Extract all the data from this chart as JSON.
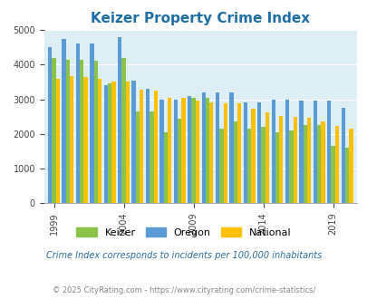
{
  "title": "Keizer Property Crime Index",
  "years": [
    1999,
    2000,
    2001,
    2002,
    2003,
    2004,
    2005,
    2006,
    2007,
    2008,
    2009,
    2010,
    2011,
    2012,
    2013,
    2014,
    2015,
    2016,
    2017,
    2018,
    2019,
    2020
  ],
  "keizer": [
    4200,
    4150,
    4130,
    4100,
    3450,
    4200,
    2650,
    2650,
    2050,
    2450,
    3050,
    3050,
    2150,
    2350,
    2150,
    2200,
    2050,
    2100,
    2250,
    2250,
    1650,
    1600
  ],
  "oregon": [
    4500,
    4750,
    4600,
    4600,
    3400,
    4800,
    3550,
    3300,
    3000,
    3000,
    3100,
    3200,
    3200,
    3200,
    2900,
    2900,
    3000,
    3000,
    2950,
    2950,
    2950,
    2750
  ],
  "national": [
    3600,
    3680,
    3650,
    3600,
    3520,
    3500,
    3280,
    3250,
    3050,
    3050,
    2960,
    2920,
    2880,
    2880,
    2720,
    2620,
    2520,
    2500,
    2470,
    2370,
    2240,
    2150
  ],
  "keizer_color": "#8bc34a",
  "oregon_color": "#5b9bd5",
  "national_color": "#ffc000",
  "bg_color": "#ddeef4",
  "ylim": [
    0,
    5000
  ],
  "yticks": [
    0,
    1000,
    2000,
    3000,
    4000,
    5000
  ],
  "xtick_years": [
    1999,
    2004,
    2009,
    2014,
    2019
  ],
  "subtitle": "Crime Index corresponds to incidents per 100,000 inhabitants",
  "footer": "© 2025 CityRating.com - https://www.cityrating.com/crime-statistics/",
  "title_color": "#1e6fa5",
  "subtitle_color": "#2e6da4",
  "footer_color": "#888888"
}
